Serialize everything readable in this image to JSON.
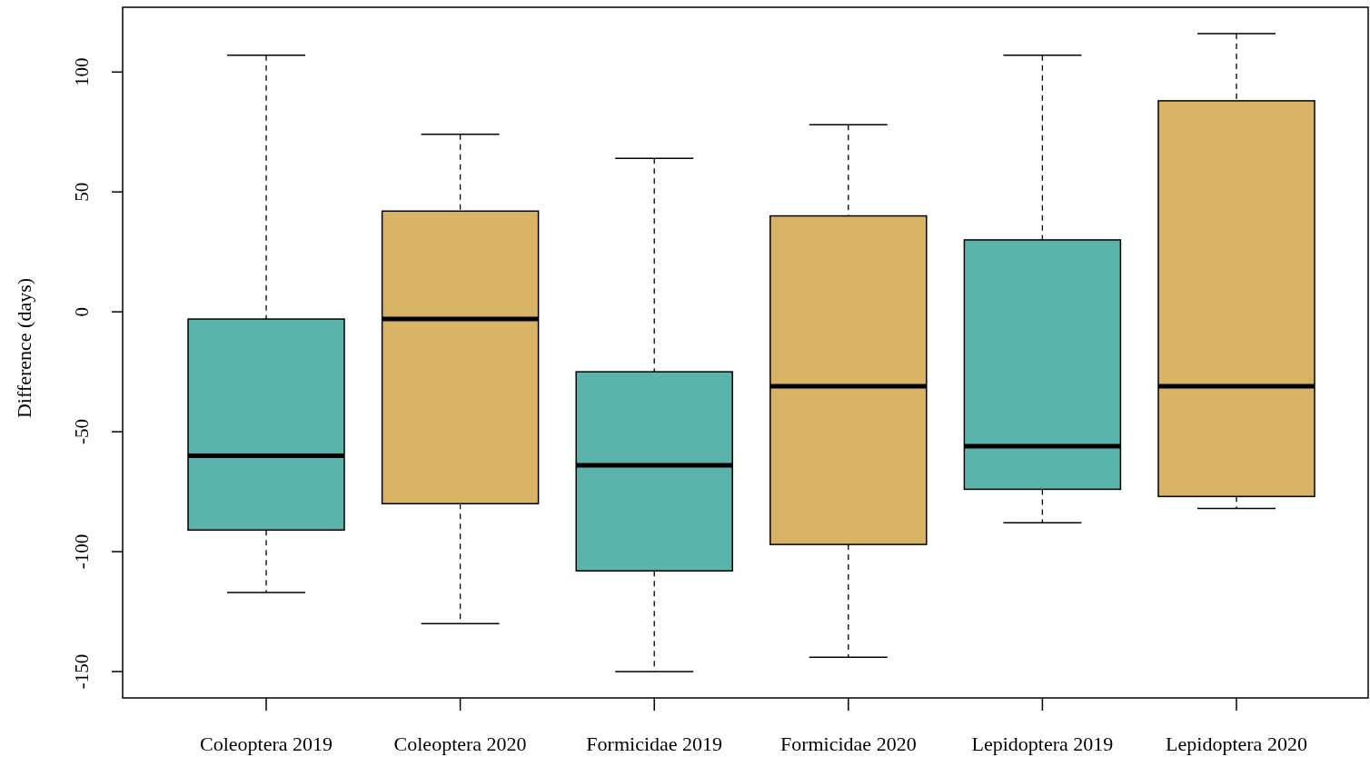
{
  "chart_data": {
    "type": "box",
    "ylabel": "Difference (days)",
    "categories": [
      "Coleoptera 2019",
      "Coleoptera 2020",
      "Formicidae 2019",
      "Formicidae 2020",
      "Lepidoptera 2019",
      "Lepidoptera 2020"
    ],
    "colors": [
      "#5ab4ac",
      "#d8b365",
      "#5ab4ac",
      "#d8b365",
      "#5ab4ac",
      "#d8b365"
    ],
    "boxes": [
      {
        "low": -117,
        "q1": -91,
        "median": -60,
        "q3": -3,
        "high": 107
      },
      {
        "low": -130,
        "q1": -80,
        "median": -3,
        "q3": 42,
        "high": 74
      },
      {
        "low": -150,
        "q1": -108,
        "median": -64,
        "q3": -25,
        "high": 64
      },
      {
        "low": -144,
        "q1": -97,
        "median": -31,
        "q3": 40,
        "high": 78
      },
      {
        "low": -88,
        "q1": -74,
        "median": -56,
        "q3": 30,
        "high": 107
      },
      {
        "low": -82,
        "q1": -77,
        "median": -31,
        "q3": 88,
        "high": 116
      }
    ],
    "ylim": [
      -161,
      127
    ],
    "yticks": [
      -150,
      -100,
      -50,
      0,
      50,
      100
    ],
    "grid": false
  }
}
